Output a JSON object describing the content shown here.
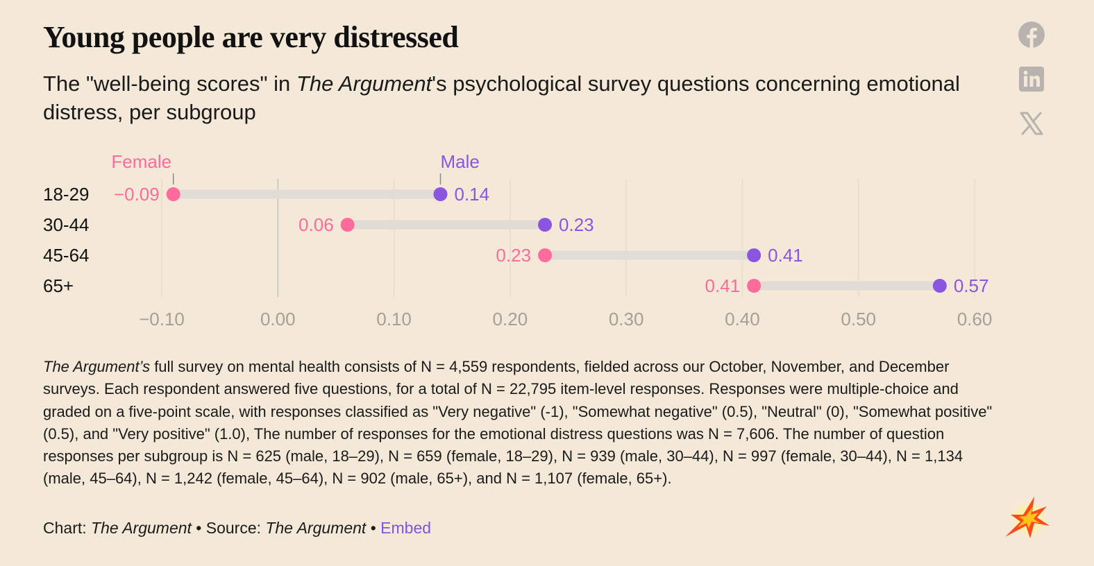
{
  "title": "Young people are very distressed",
  "subtitle": {
    "before": "The \"well-being scores\" in ",
    "publication": "The Argument",
    "after": "'s psychological survey questions concerning emotional distress, per subgroup"
  },
  "social": {
    "facebook_icon": "facebook-icon",
    "linkedin_icon": "linkedin-icon",
    "x_icon": "x-icon",
    "icon_color": "#b8b3ae"
  },
  "chart_data": {
    "type": "dumbbell",
    "categories": [
      "18-29",
      "30-44",
      "45-64",
      "65+"
    ],
    "series": [
      {
        "name": "Female",
        "color": "#ff6b9a",
        "values": [
          -0.09,
          0.06,
          0.23,
          0.41
        ],
        "labels": [
          "−0.09",
          "0.06",
          "0.23",
          "0.41"
        ]
      },
      {
        "name": "Male",
        "color": "#8a56e0",
        "values": [
          0.14,
          0.23,
          0.41,
          0.57
        ],
        "labels": [
          "0.14",
          "0.23",
          "0.41",
          "0.57"
        ]
      }
    ],
    "xticks": [
      -0.1,
      0.0,
      0.1,
      0.2,
      0.3,
      0.4,
      0.5,
      0.6
    ],
    "xtick_labels": [
      "−0.10",
      "0.00",
      "0.10",
      "0.20",
      "0.30",
      "0.40",
      "0.50",
      "0.60"
    ],
    "xlim": [
      -0.1,
      0.6
    ],
    "legend_placement": "above first row",
    "grid": true,
    "zero_line": true,
    "bar_color": "#e1dcd6",
    "grid_color": "#e6dccd",
    "zero_line_color": "#cfc8c0",
    "tick_color": "#a59f99"
  },
  "notes": {
    "publication": "The Argument’s",
    "text": " full survey on mental health consists of N = 4,559 respondents, fielded across our October, November, and December surveys. Each respondent answered five questions, for a total of N = 22,795 item-level responses. Responses were multiple-choice and graded on a five-point scale, with responses classified as \"Very negative\" (-1), \"Somewhat negative\" (0.5), \"Neutral\" (0), \"Somewhat positive\" (0.5), and \"Very positive\" (1.0), The number of responses for the emotional distress questions was N = 7,606. The number of question responses per subgroup is N = 625 (male, 18–29), N = 659 (female, 18–29), N = 939 (male, 30–44), N = 997 (female, 30–44), N = 1,134 (male, 45–64), N = 1,242 (female, 45–64), N = 902 (male, 65+), and N = 1,107 (female, 65+)."
  },
  "credit": {
    "chart_prefix": "Chart: ",
    "chart_name": "The Argument",
    "source_prefix": " • Source: ",
    "source_name": "The Argument",
    "separator": " • ",
    "embed_label": "Embed"
  },
  "logo": {
    "icon": "burst-logo-icon"
  }
}
